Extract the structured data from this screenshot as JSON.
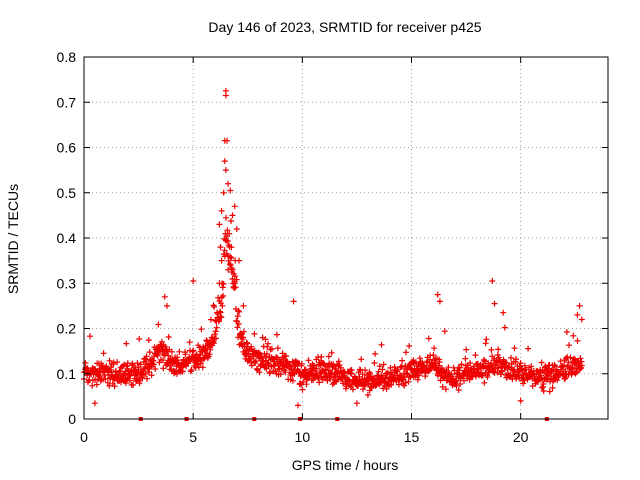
{
  "chart_data": {
    "type": "scatter",
    "title": "Day 146 of 2023, SRMTID for receiver p425",
    "xlabel": "GPS time / hours",
    "ylabel": "SRMTID / TECUs",
    "xlim": [
      0,
      24
    ],
    "ylim": [
      0,
      0.8
    ],
    "x_ticks": [
      0,
      5,
      10,
      15,
      20
    ],
    "y_ticks": [
      0,
      0.1,
      0.2,
      0.3,
      0.4,
      0.5,
      0.6,
      0.7,
      0.8
    ],
    "x_tick_labels": [
      "0",
      "5",
      "10",
      "15",
      "20"
    ],
    "y_tick_labels": [
      "0",
      "0.1",
      "0.2",
      "0.3",
      "0.4",
      "0.5",
      "0.6",
      "0.7",
      "0.8"
    ],
    "grid": true,
    "legend": "none",
    "series_color": "#ee0000",
    "marker": "plus",
    "baseline_level": [
      [
        0,
        0.1
      ],
      [
        1,
        0.105
      ],
      [
        2,
        0.1
      ],
      [
        2.6,
        0.1
      ],
      [
        3,
        0.12
      ],
      [
        3.5,
        0.15
      ],
      [
        4,
        0.12
      ],
      [
        5,
        0.13
      ],
      [
        5.6,
        0.15
      ],
      [
        6,
        0.18
      ],
      [
        6.3,
        0.25
      ],
      [
        6.5,
        0.4
      ],
      [
        6.8,
        0.33
      ],
      [
        7.2,
        0.18
      ],
      [
        7.6,
        0.14
      ],
      [
        8,
        0.13
      ],
      [
        9,
        0.12
      ],
      [
        10,
        0.1
      ],
      [
        11,
        0.11
      ],
      [
        12,
        0.09
      ],
      [
        13,
        0.08
      ],
      [
        14,
        0.09
      ],
      [
        15,
        0.11
      ],
      [
        16,
        0.12
      ],
      [
        16.5,
        0.1
      ],
      [
        17,
        0.09
      ],
      [
        18,
        0.11
      ],
      [
        19,
        0.12
      ],
      [
        20,
        0.1
      ],
      [
        21,
        0.09
      ],
      [
        21.5,
        0.1
      ],
      [
        22,
        0.11
      ],
      [
        22.8,
        0.12
      ]
    ],
    "notable_points": [
      {
        "x": 6.5,
        "y": 0.725
      },
      {
        "x": 6.5,
        "y": 0.715
      },
      {
        "x": 6.45,
        "y": 0.615
      },
      {
        "x": 6.55,
        "y": 0.615
      },
      {
        "x": 6.45,
        "y": 0.57
      },
      {
        "x": 6.5,
        "y": 0.55
      },
      {
        "x": 6.6,
        "y": 0.52
      },
      {
        "x": 6.7,
        "y": 0.505
      },
      {
        "x": 6.4,
        "y": 0.5
      },
      {
        "x": 6.9,
        "y": 0.47
      },
      {
        "x": 6.3,
        "y": 0.46
      },
      {
        "x": 6.8,
        "y": 0.45
      },
      {
        "x": 6.2,
        "y": 0.43
      },
      {
        "x": 7.0,
        "y": 0.42
      },
      {
        "x": 6.25,
        "y": 0.38
      },
      {
        "x": 6.75,
        "y": 0.38
      },
      {
        "x": 6.3,
        "y": 0.35
      },
      {
        "x": 7.1,
        "y": 0.35
      },
      {
        "x": 6.6,
        "y": 0.33
      },
      {
        "x": 6.2,
        "y": 0.3
      },
      {
        "x": 6.9,
        "y": 0.3
      },
      {
        "x": 7.3,
        "y": 0.25
      },
      {
        "x": 3.7,
        "y": 0.27
      },
      {
        "x": 3.8,
        "y": 0.25
      },
      {
        "x": 5.0,
        "y": 0.305
      },
      {
        "x": 9.6,
        "y": 0.26
      },
      {
        "x": 16.2,
        "y": 0.275
      },
      {
        "x": 16.3,
        "y": 0.26
      },
      {
        "x": 18.7,
        "y": 0.305
      },
      {
        "x": 18.8,
        "y": 0.255
      },
      {
        "x": 19.2,
        "y": 0.235
      },
      {
        "x": 22.7,
        "y": 0.25
      },
      {
        "x": 22.6,
        "y": 0.23
      },
      {
        "x": 22.8,
        "y": 0.22
      },
      {
        "x": 12.5,
        "y": 0.035
      },
      {
        "x": 9.8,
        "y": 0.03
      },
      {
        "x": 0.5,
        "y": 0.035
      },
      {
        "x": 20.0,
        "y": 0.04
      }
    ],
    "data_gaps_hours": [
      2.6,
      4.7,
      7.8,
      9.9,
      11.6,
      21.2
    ]
  }
}
